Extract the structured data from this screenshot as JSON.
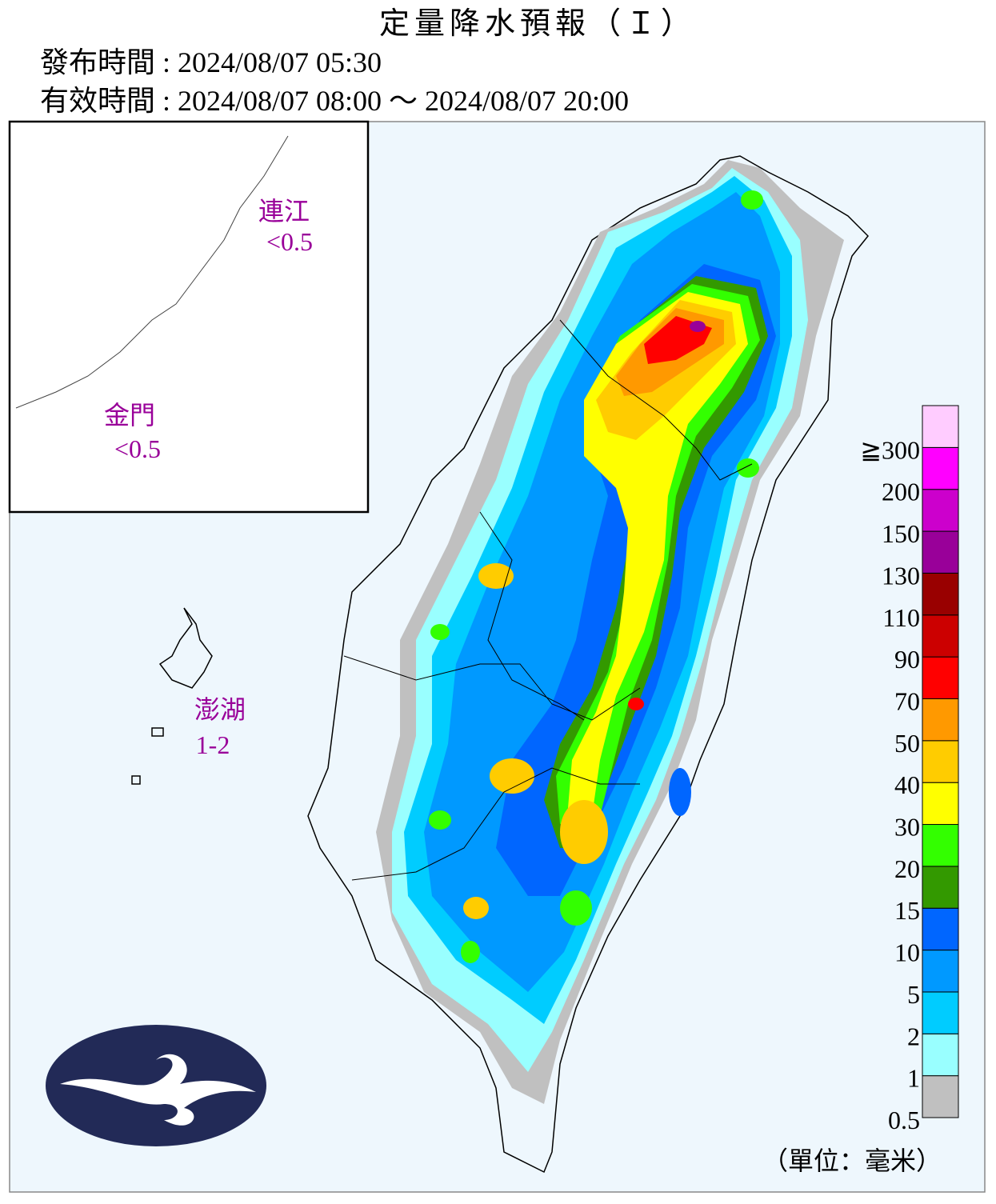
{
  "header": {
    "title": "定量降水預報（Ｉ）",
    "issue": "發布時間 : 2024/08/07 05:30",
    "valid": "有效時間 : 2024/08/07 08:00 ～ 2024/08/07 20:00"
  },
  "regions": [
    {
      "name": "連江",
      "value": "<0.5"
    },
    {
      "name": "金門",
      "value": "<0.5"
    },
    {
      "name": "澎湖",
      "value": "1-2"
    }
  ],
  "legend": {
    "labels": [
      "0.5",
      "1",
      "2",
      "5",
      "10",
      "15",
      "20",
      "30",
      "40",
      "50",
      "70",
      "90",
      "110",
      "130",
      "150",
      "200",
      "≧300"
    ],
    "colors": [
      "#c0c0c0",
      "#99ffff",
      "#00ccff",
      "#0099ff",
      "#0066ff",
      "#339900",
      "#33ff00",
      "#ffff00",
      "#ffcc00",
      "#ff9900",
      "#ff0000",
      "#cc0000",
      "#990000",
      "#990099",
      "#cc00cc",
      "#ff00ff",
      "#ffccff"
    ],
    "unit": "（單位：毫米）"
  }
}
